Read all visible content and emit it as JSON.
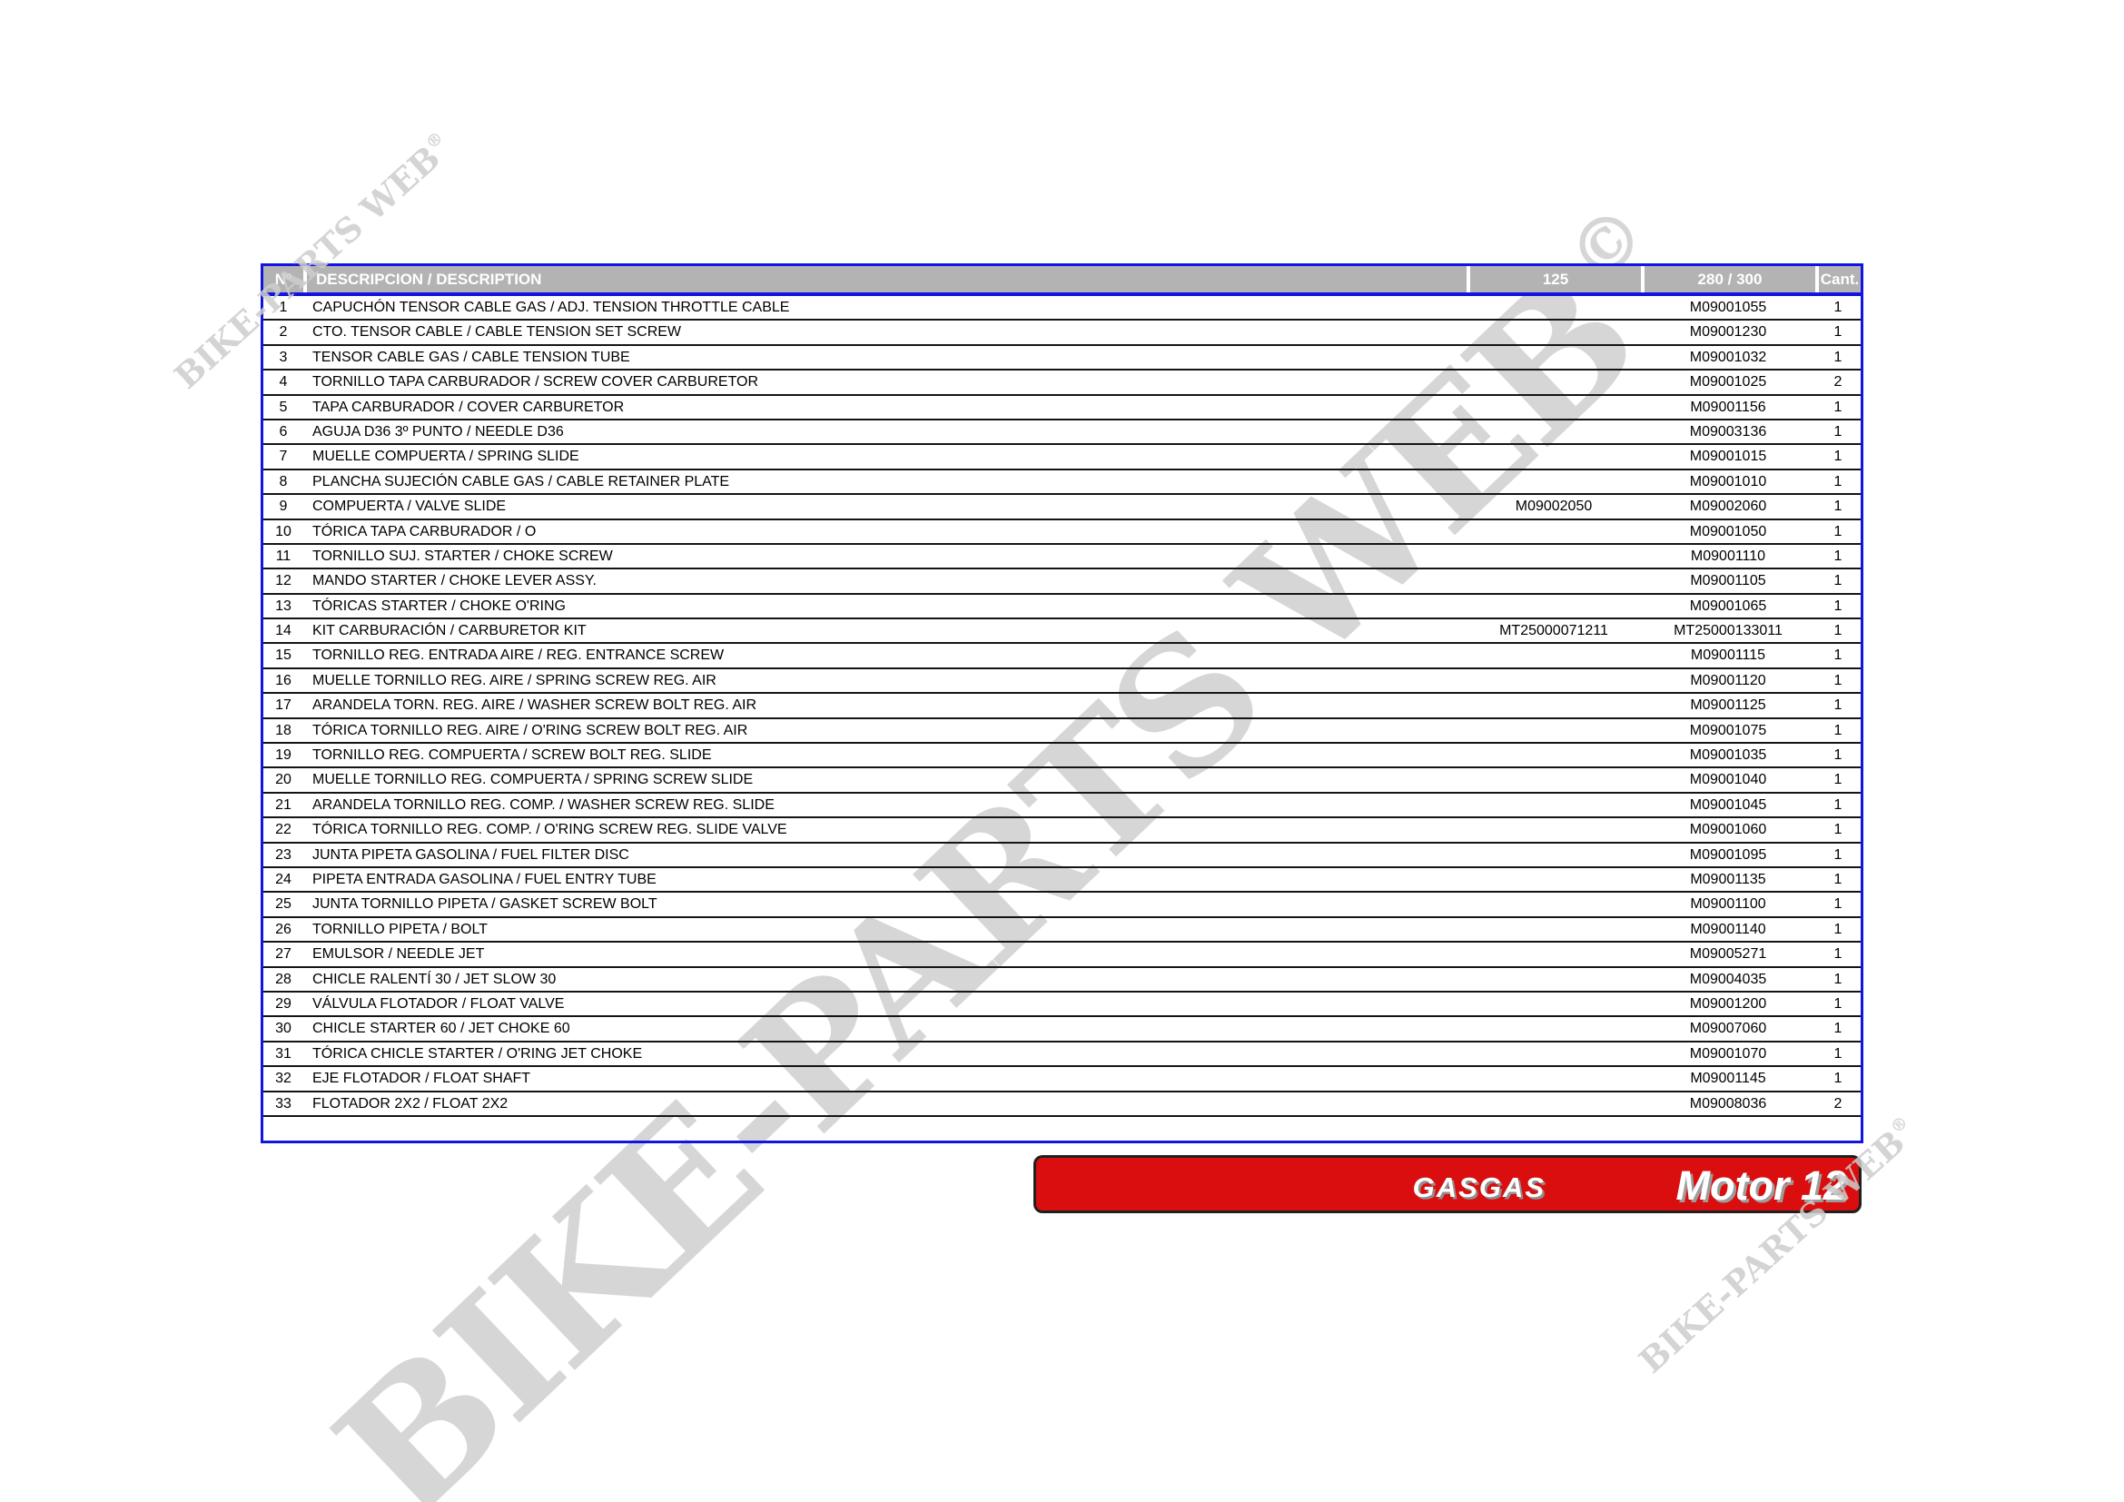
{
  "watermark": {
    "text": "BIKE-PARTS WEB",
    "copyright_mark": "©",
    "registered_mark": "®"
  },
  "table": {
    "headers": {
      "num": "Nº",
      "description": "DESCRIPCION / DESCRIPTION",
      "col_125": "125",
      "col_280_300": "280 / 300",
      "qty": "Cant."
    },
    "rows": [
      {
        "num": "1",
        "description": "CAPUCHÓN TENSOR CABLE GAS / ADJ. TENSION THROTTLE CABLE",
        "ref125": "",
        "ref280300": "M09001055",
        "qty": "1"
      },
      {
        "num": "2",
        "description": "CTO. TENSOR CABLE / CABLE TENSION SET SCREW",
        "ref125": "",
        "ref280300": "M09001230",
        "qty": "1"
      },
      {
        "num": "3",
        "description": "TENSOR CABLE GAS / CABLE TENSION TUBE",
        "ref125": "",
        "ref280300": "M09001032",
        "qty": "1"
      },
      {
        "num": "4",
        "description": "TORNILLO TAPA CARBURADOR / SCREW COVER CARBURETOR",
        "ref125": "",
        "ref280300": "M09001025",
        "qty": "2"
      },
      {
        "num": "5",
        "description": "TAPA CARBURADOR / COVER CARBURETOR",
        "ref125": "",
        "ref280300": "M09001156",
        "qty": "1"
      },
      {
        "num": "6",
        "description": "AGUJA D36 3º PUNTO / NEEDLE D36",
        "ref125": "",
        "ref280300": "M09003136",
        "qty": "1"
      },
      {
        "num": "7",
        "description": "MUELLE COMPUERTA / SPRING SLIDE",
        "ref125": "",
        "ref280300": "M09001015",
        "qty": "1"
      },
      {
        "num": "8",
        "description": "PLANCHA SUJECIÓN CABLE GAS / CABLE RETAINER PLATE",
        "ref125": "",
        "ref280300": "M09001010",
        "qty": "1"
      },
      {
        "num": "9",
        "description": "COMPUERTA / VALVE SLIDE",
        "ref125": "M09002050",
        "ref280300": "M09002060",
        "qty": "1"
      },
      {
        "num": "10",
        "description": "TÓRICA TAPA CARBURADOR / O",
        "ref125": "",
        "ref280300": "M09001050",
        "qty": "1"
      },
      {
        "num": "11",
        "description": "TORNILLO SUJ. STARTER / CHOKE SCREW",
        "ref125": "",
        "ref280300": "M09001110",
        "qty": "1"
      },
      {
        "num": "12",
        "description": "MANDO STARTER / CHOKE LEVER ASSY.",
        "ref125": "",
        "ref280300": "M09001105",
        "qty": "1"
      },
      {
        "num": "13",
        "description": "TÓRICAS STARTER / CHOKE O'RING",
        "ref125": "",
        "ref280300": "M09001065",
        "qty": "1"
      },
      {
        "num": "14",
        "description": "KIT CARBURACIÓN / CARBURETOR KIT",
        "ref125": "MT25000071211",
        "ref280300": "MT25000133011",
        "qty": "1"
      },
      {
        "num": "15",
        "description": "TORNILLO REG. ENTRADA AIRE / REG. ENTRANCE SCREW",
        "ref125": "",
        "ref280300": "M09001115",
        "qty": "1"
      },
      {
        "num": "16",
        "description": "MUELLE TORNILLO REG. AIRE / SPRING SCREW REG. AIR",
        "ref125": "",
        "ref280300": "M09001120",
        "qty": "1"
      },
      {
        "num": "17",
        "description": "ARANDELA TORN. REG. AIRE / WASHER SCREW BOLT REG. AIR",
        "ref125": "",
        "ref280300": "M09001125",
        "qty": "1"
      },
      {
        "num": "18",
        "description": "TÓRICA TORNILLO REG. AIRE / O'RING SCREW BOLT REG. AIR",
        "ref125": "",
        "ref280300": "M09001075",
        "qty": "1"
      },
      {
        "num": "19",
        "description": "TORNILLO REG. COMPUERTA / SCREW BOLT REG. SLIDE",
        "ref125": "",
        "ref280300": "M09001035",
        "qty": "1"
      },
      {
        "num": "20",
        "description": "MUELLE TORNILLO REG. COMPUERTA / SPRING SCREW SLIDE",
        "ref125": "",
        "ref280300": "M09001040",
        "qty": "1"
      },
      {
        "num": "21",
        "description": "ARANDELA TORNILLO REG. COMP. / WASHER SCREW REG. SLIDE",
        "ref125": "",
        "ref280300": "M09001045",
        "qty": "1"
      },
      {
        "num": "22",
        "description": "TÓRICA TORNILLO REG. COMP. / O'RING SCREW REG. SLIDE VALVE",
        "ref125": "",
        "ref280300": "M09001060",
        "qty": "1"
      },
      {
        "num": "23",
        "description": "JUNTA PIPETA GASOLINA / FUEL FILTER DISC",
        "ref125": "",
        "ref280300": "M09001095",
        "qty": "1"
      },
      {
        "num": "24",
        "description": "PIPETA ENTRADA GASOLINA / FUEL ENTRY TUBE",
        "ref125": "",
        "ref280300": "M09001135",
        "qty": "1"
      },
      {
        "num": "25",
        "description": "JUNTA TORNILLO PIPETA / GASKET SCREW BOLT",
        "ref125": "",
        "ref280300": "M09001100",
        "qty": "1"
      },
      {
        "num": "26",
        "description": "TORNILLO PIPETA / BOLT",
        "ref125": "",
        "ref280300": "M09001140",
        "qty": "1"
      },
      {
        "num": "27",
        "description": "EMULSOR / NEEDLE JET",
        "ref125": "",
        "ref280300": "M09005271",
        "qty": "1"
      },
      {
        "num": "28",
        "description": "CHICLE RALENTÍ 30 / JET SLOW 30",
        "ref125": "",
        "ref280300": "M09004035",
        "qty": "1"
      },
      {
        "num": "29",
        "description": "VÁLVULA FLOTADOR / FLOAT VALVE",
        "ref125": "",
        "ref280300": "M09001200",
        "qty": "1"
      },
      {
        "num": "30",
        "description": "CHICLE STARTER 60 / JET CHOKE 60",
        "ref125": "",
        "ref280300": "M09007060",
        "qty": "1"
      },
      {
        "num": "31",
        "description": "TÓRICA CHICLE STARTER / O'RING JET CHOKE",
        "ref125": "",
        "ref280300": "M09001070",
        "qty": "1"
      },
      {
        "num": "32",
        "description": "EJE FLOTADOR / FLOAT SHAFT",
        "ref125": "",
        "ref280300": "M09001145",
        "qty": "1"
      },
      {
        "num": "33",
        "description": "FLOTADOR 2X2 / FLOAT 2X2",
        "ref125": "",
        "ref280300": "M09008036",
        "qty": "2"
      }
    ]
  },
  "banner": {
    "brand": "GASGAS",
    "model": "Motor 12",
    "red": "#da0e0e"
  }
}
